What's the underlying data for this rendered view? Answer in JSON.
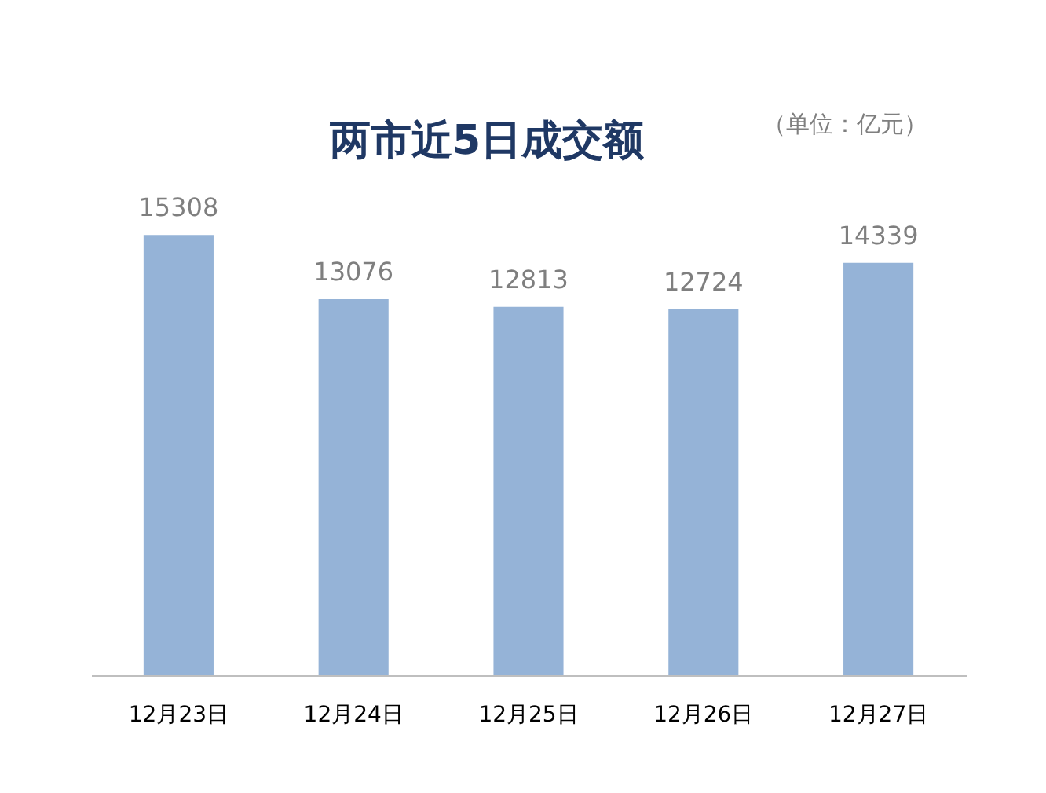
{
  "chart_data": {
    "type": "bar",
    "title": "两市近5日成交额",
    "annotations": [
      "（单位：亿元）"
    ],
    "categories": [
      "12月23日",
      "12月24日",
      "12月25日",
      "12月26日",
      "12月27日"
    ],
    "values": [
      15308,
      13076,
      12813,
      12724,
      14339
    ],
    "color": "#95b3d7",
    "data_labels": true,
    "tick_labels": "x",
    "grid": false
  }
}
